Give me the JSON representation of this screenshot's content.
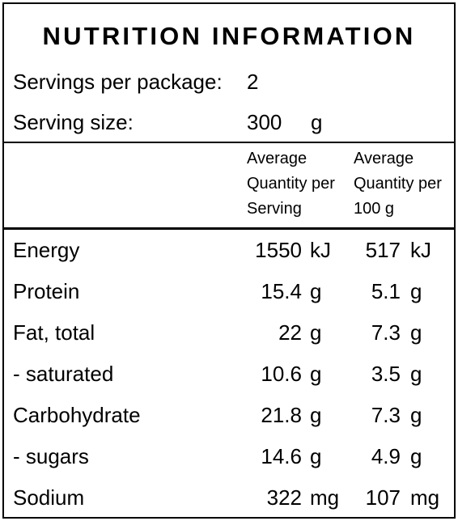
{
  "title": "NUTRITION INFORMATION",
  "servings": {
    "label": "Servings per package:",
    "value": "2"
  },
  "serving_size": {
    "label": "Serving size:",
    "value": "300",
    "unit": "g"
  },
  "columns": {
    "per_serving": [
      "Average",
      "Quantity per",
      "Serving"
    ],
    "per_100g": [
      "Average",
      "Quantity per",
      "100 g"
    ]
  },
  "nutrients": [
    {
      "name": "Energy",
      "serving": "1550",
      "serving_unit": "kJ",
      "per100": "517",
      "per100_unit": "kJ"
    },
    {
      "name": "Protein",
      "serving": "15.4",
      "serving_unit": "g",
      "per100": "5.1",
      "per100_unit": "g"
    },
    {
      "name": "Fat, total",
      "serving": "22",
      "serving_unit": "g",
      "per100": "7.3",
      "per100_unit": "g"
    },
    {
      "name": "- saturated",
      "serving": "10.6",
      "serving_unit": "g",
      "per100": "3.5",
      "per100_unit": "g"
    },
    {
      "name": "Carbohydrate",
      "serving": "21.8",
      "serving_unit": "g",
      "per100": "7.3",
      "per100_unit": "g"
    },
    {
      "name": "- sugars",
      "serving": "14.6",
      "serving_unit": "g",
      "per100": "4.9",
      "per100_unit": "g"
    },
    {
      "name": "Sodium",
      "serving": "322",
      "serving_unit": "mg",
      "per100": "107",
      "per100_unit": "mg"
    }
  ]
}
